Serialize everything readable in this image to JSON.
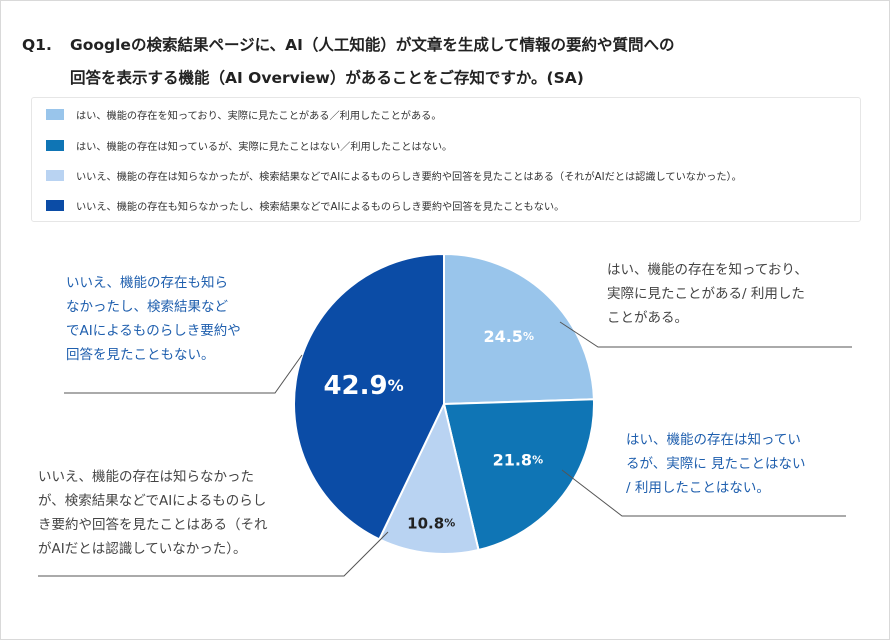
{
  "title": {
    "number": "Q1.",
    "line1": "Googleの検索結果ページに、AI（人工知能）が文章を生成して情報の要約や質問への",
    "line2": "回答を表示する機能（AI Overview）があることをご存知ですか。(SA)"
  },
  "colors": {
    "slice1": "#99c5eb",
    "slice2": "#0f75b5",
    "slice3": "#b9d3f2",
    "slice4": "#0b4ca6",
    "callout_blue": "#1f5fae",
    "callout_gray": "#444444"
  },
  "legend": [
    "はい、機能の存在を知っており、実際に見たことがある／利用したことがある。",
    "はい、機能の存在は知っているが、実際に見たことはない／利用したことはない。",
    "いいえ、機能の存在は知らなかったが、検索結果などでAIによるものらしき要約や回答を見たことはある（それがAIだとは認識していなかった）。",
    "いいえ、機能の存在も知らなかったし、検索結果などでAIによるものらしき要約や回答を見たこともない。"
  ],
  "chart_data": {
    "type": "pie",
    "start": "12 o'clock",
    "direction": "clockwise",
    "unit": "%",
    "slices": [
      {
        "label": "はい、機能の存在を知っており、実際に見たことがある／利用したことがある。",
        "value": 24.5
      },
      {
        "label": "はい、機能の存在は知っているが、実際に見たことはない／利用したことはない。",
        "value": 21.8
      },
      {
        "label": "いいえ、機能の存在は知らなかったが、検索結果などでAIによるものらしき要約や回答を見たことはある（それがAIだとは認識していなかった）。",
        "value": 10.8
      },
      {
        "label": "いいえ、機能の存在も知らなかったし、検索結果などでAIによるものらしき要約や回答を見たこともない。",
        "value": 42.9
      }
    ]
  },
  "callouts": [
    "はい、機能の存在を知っており、\n実際に見たことがある/ 利用した\nことがある。",
    "はい、機能の存在は知ってい\nるが、実際に 見たことはない\n/ 利用したことはない。",
    "いいえ、機能の存在は知らなかった\nが、検索結果などでAIによるものらし\nき要約や回答を見たことはある（それ\nがAIだとは認識していなかった）。",
    "いいえ、機能の存在も知ら\nなかったし、検索結果など\nでAIによるものらしき要約や\n回答を見たこともない。"
  ]
}
